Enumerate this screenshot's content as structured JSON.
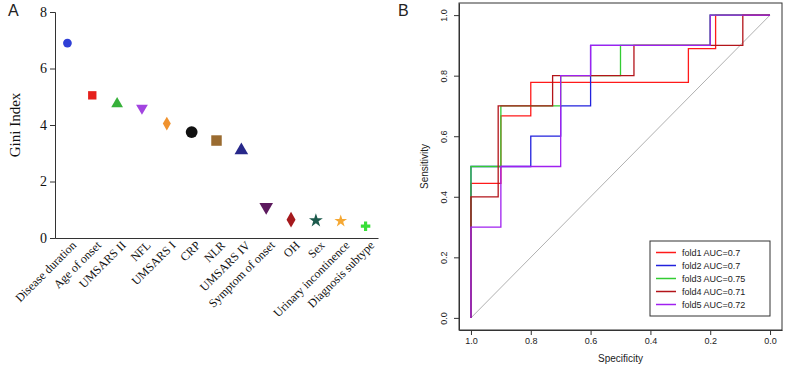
{
  "chart_data": [
    {
      "type": "scatter",
      "title": "A",
      "y_label": "Gini Index",
      "categories": [
        "Disease duration",
        "Age of onset",
        "UMSARS II",
        "NFL",
        "UMSARS I",
        "CRP",
        "NLR",
        "UMSARS IV",
        "Symptom of onset",
        "OH",
        "Sex",
        "Urinary incontinence",
        "Diagnosis subtype"
      ],
      "values": [
        6.9,
        5.05,
        4.75,
        4.6,
        4.05,
        3.75,
        3.45,
        3.1,
        1.1,
        0.65,
        0.62,
        0.6,
        0.42
      ],
      "colors": [
        "#2f3fd6",
        "#e5201c",
        "#37b13a",
        "#a244e0",
        "#f0922e",
        "#111111",
        "#9a6b30",
        "#27288a",
        "#5c1a5e",
        "#a5191d",
        "#1c5a4c",
        "#f5a834",
        "#38de38"
      ],
      "ylim": [
        0,
        8
      ],
      "yticks": [
        0,
        2,
        4,
        6,
        8
      ],
      "grid": false
    },
    {
      "type": "line",
      "title": "B",
      "x_label": "Specificity",
      "y_label": "Sensitivity",
      "xlim": [
        1.04,
        -0.04
      ],
      "ylim": [
        -0.04,
        1.04
      ],
      "xticks": [
        {
          "value": 1,
          "label": "1.0"
        },
        0.8,
        0.6,
        0.4,
        0.2,
        {
          "value": 0,
          "label": "0.0"
        }
      ],
      "yticks": [
        {
          "value": 0,
          "label": "0.0"
        },
        0.2,
        0.4,
        0.6,
        0.8,
        {
          "value": 1,
          "label": "1.0"
        }
      ],
      "legend": "bottom-right",
      "grid": false,
      "series": [
        {
          "name": "fold1 AUC=0.7",
          "color": "#ff1a1a",
          "x": [
            1,
            1,
            0.9,
            0.9,
            0.8,
            0.8,
            0.273,
            0.273,
            0.182,
            0.182,
            0
          ],
          "values": [
            0,
            0.444,
            0.444,
            0.667,
            0.667,
            0.778,
            0.778,
            0.889,
            0.889,
            1,
            1
          ]
        },
        {
          "name": "fold2 AUC=0.7",
          "color": "#2222dd",
          "x": [
            1,
            1,
            0.8,
            0.8,
            0.7,
            0.7,
            0.6,
            0.6,
            0.2,
            0.2,
            0
          ],
          "values": [
            0,
            0.5,
            0.5,
            0.6,
            0.6,
            0.7,
            0.7,
            0.9,
            0.9,
            1,
            1
          ]
        },
        {
          "name": "fold3 AUC=0.75",
          "color": "#33cc33",
          "x": [
            1,
            1,
            0.9,
            0.9,
            0.7,
            0.7,
            0.5,
            0.5,
            0.2,
            0.2,
            0
          ],
          "values": [
            0,
            0.5,
            0.5,
            0.7,
            0.7,
            0.8,
            0.8,
            0.9,
            0.9,
            1,
            1
          ]
        },
        {
          "name": "fold4 AUC=0.71",
          "color": "#b3141a",
          "x": [
            1,
            1,
            0.909,
            0.909,
            0.727,
            0.727,
            0.455,
            0.455,
            0.091,
            0.091,
            0
          ],
          "values": [
            0,
            0.4,
            0.4,
            0.7,
            0.7,
            0.8,
            0.8,
            0.9,
            0.9,
            1,
            1
          ]
        },
        {
          "name": "fold5 AUC=0.72",
          "color": "#a020f0",
          "x": [
            1,
            1,
            0.9,
            0.9,
            0.7,
            0.7,
            0.6,
            0.6,
            0.2,
            0.2,
            0
          ],
          "values": [
            0,
            0.3,
            0.3,
            0.5,
            0.5,
            0.8,
            0.8,
            0.9,
            0.9,
            1,
            1
          ]
        }
      ]
    }
  ]
}
